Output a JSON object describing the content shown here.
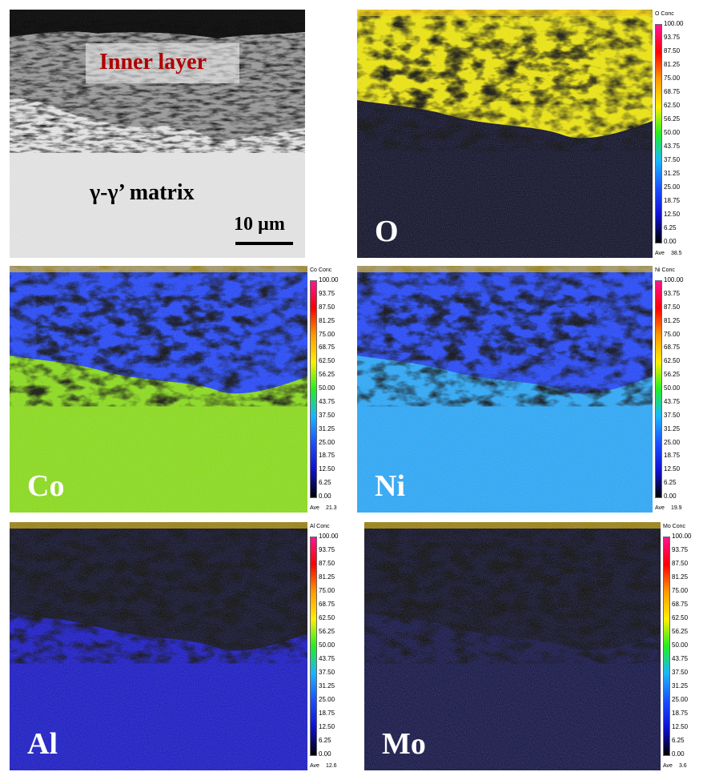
{
  "sem": {
    "inner_label": "Inner layer",
    "matrix_label": "γ-γ’ matrix",
    "scalebar_label": "10 µm"
  },
  "legend_ticks": [
    "100.00",
    "93.75",
    "87.50",
    "81.25",
    "75.00",
    "68.75",
    "62.50",
    "56.25",
    "50.00",
    "43.75",
    "37.50",
    "31.25",
    "25.00",
    "18.75",
    "12.50",
    "6.25",
    "0.00"
  ],
  "legend_head_suffix": "Conc",
  "legend_ave_label": "Ave",
  "maps": [
    {
      "element": "O",
      "legend_element": "O",
      "ave": "38.5"
    },
    {
      "element": "Co",
      "legend_element": "Co",
      "ave": "21.3"
    },
    {
      "element": "Ni",
      "legend_element": "Ni",
      "ave": "19.9"
    },
    {
      "element": "Al",
      "legend_element": "Al",
      "ave": "12.6"
    },
    {
      "element": "Mo",
      "legend_element": "Mo",
      "ave": "3.6"
    }
  ],
  "colors": {
    "ramp": [
      "#000000",
      "#1010d0",
      "#1a4fff",
      "#19b5ff",
      "#22ee22",
      "#ffee00",
      "#ff9900",
      "#ff0000",
      "#ff1493"
    ],
    "sem_label": "#b00000"
  }
}
